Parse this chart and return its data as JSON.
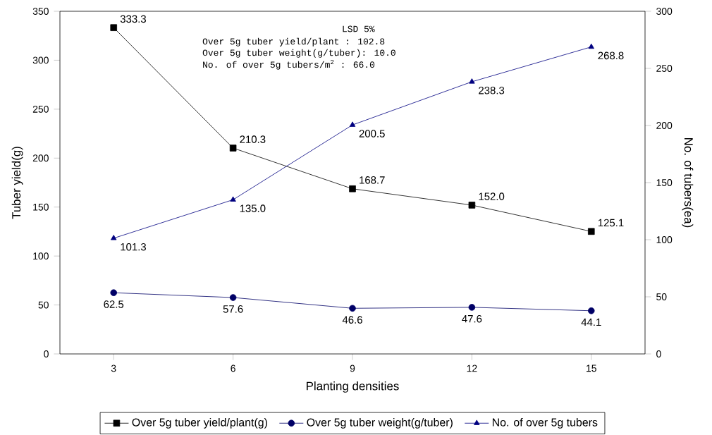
{
  "chart_data": {
    "type": "line",
    "xlabel": "Planting densities",
    "ylabel": "Tuber yield(g)",
    "y2label": "No. of tubers(ea)",
    "categories": [
      "3",
      "6",
      "9",
      "12",
      "15"
    ],
    "series": [
      {
        "name": "Over 5g tuber yield/plant(g)",
        "color": "#000000",
        "marker": "square",
        "values": [
          333.3,
          210.3,
          168.7,
          152.0,
          125.1
        ],
        "value_labels": [
          "333.3",
          "210.3",
          "168.7",
          "152.0",
          "125.1"
        ]
      },
      {
        "name": "Over 5g tuber weight(g/tuber)",
        "color": "#000066",
        "marker": "circle",
        "values": [
          62.5,
          57.6,
          46.6,
          47.6,
          44.1
        ],
        "value_labels": [
          "62.5",
          "57.6",
          "46.6",
          "47.6",
          "44.1"
        ]
      },
      {
        "name": "No. of over 5g tubers",
        "color": "#000080",
        "marker": "triangle",
        "axis": "y2",
        "values": [
          101.3,
          135.0,
          200.5,
          238.3,
          268.8
        ],
        "value_labels": [
          "101.3",
          "135.0",
          "200.5",
          "238.3",
          "268.8"
        ]
      }
    ],
    "ylim": [
      0,
      350
    ],
    "yticks": [
      0,
      50,
      100,
      150,
      200,
      250,
      300,
      350
    ],
    "y2lim": [
      0,
      300
    ],
    "y2ticks": [
      0,
      50,
      100,
      150,
      200,
      250,
      300
    ],
    "grid": false,
    "legend": "bottom",
    "line_style": "solid",
    "annotations": [
      "LSD 5%",
      "Over 5g tuber yield/plant      : 102.8",
      "Over 5g tuber weight(g/tuber): 10.0",
      "No. of over 5g tubers/m$^{2}$     : 66.0"
    ]
  }
}
